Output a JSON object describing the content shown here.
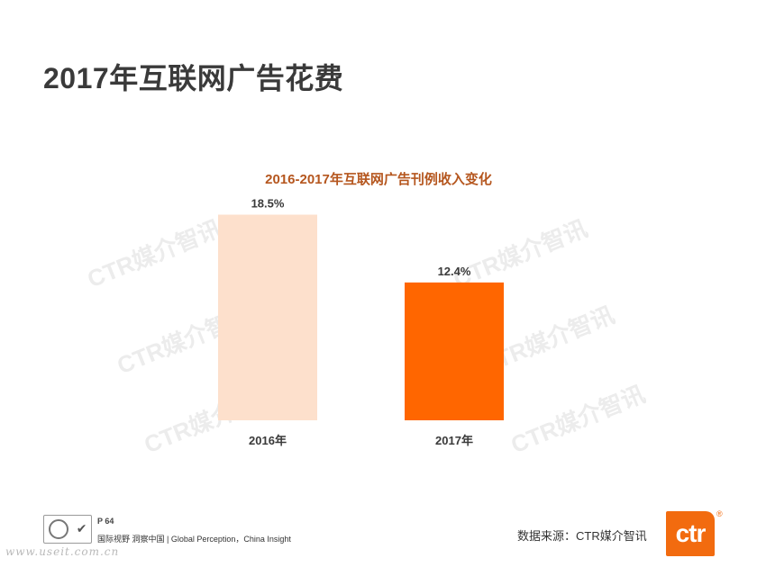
{
  "slide_title": "2017年互联网广告花费",
  "watermark_text": "CTR媒介智讯",
  "chart_data": {
    "type": "bar",
    "title": "2016-2017年互联网广告刊例收入变化",
    "categories": [
      "2016年",
      "2017年"
    ],
    "values": [
      18.5,
      12.4
    ],
    "value_labels": [
      "18.5%",
      "12.4%"
    ],
    "unit": "%",
    "colors": [
      "#fde0cc",
      "#ff6600"
    ],
    "ylim": [
      0,
      20
    ],
    "grid": false,
    "legend": "none"
  },
  "footer": {
    "page": "P 64",
    "tagline": "国际视野  洞察中国 |  Global Perception，China Insight",
    "site_url": "www.useit.com.cn",
    "source": "数据来源：CTR媒介智讯",
    "logo_text": "ctr",
    "reg_mark": "®"
  },
  "icons": [
    "certification-seal-icon",
    "checkmark-icon"
  ]
}
